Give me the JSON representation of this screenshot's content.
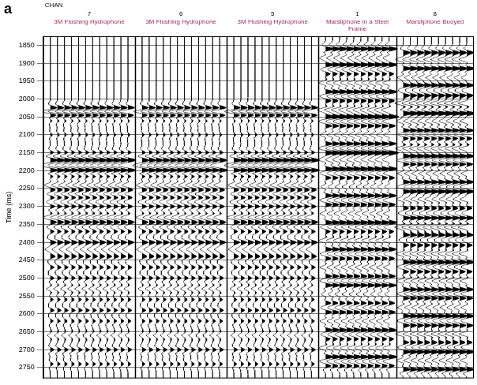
{
  "chart_data": {
    "type": "line",
    "panel_label": "a",
    "header": "CHAN",
    "y_label": "Time (ms)",
    "ylim": [
      1825,
      2780
    ],
    "yticks": [
      1850,
      1900,
      1950,
      2000,
      2050,
      2100,
      2150,
      2200,
      2250,
      2300,
      2350,
      2400,
      2450,
      2500,
      2550,
      2600,
      2650,
      2700,
      2750
    ],
    "grid": true,
    "tick_labels": "y",
    "color": "#000000",
    "panels": [
      {
        "channel": 7,
        "title": "3M Flushing Hydrophone",
        "traces": 12,
        "events": [
          [
            2025,
            0.5
          ],
          [
            2035,
            -0.6
          ],
          [
            2045,
            0.5
          ],
          [
            2060,
            0.3
          ],
          [
            2100,
            0.2
          ],
          [
            2150,
            0.4
          ],
          [
            2170,
            0.7
          ],
          [
            2185,
            -0.6
          ],
          [
            2200,
            0.8
          ],
          [
            2215,
            0.5
          ],
          [
            2240,
            -0.5
          ],
          [
            2255,
            0.4
          ],
          [
            2275,
            0.5
          ],
          [
            2300,
            0.5
          ],
          [
            2330,
            -0.6
          ],
          [
            2345,
            0.5
          ],
          [
            2370,
            0.4
          ],
          [
            2400,
            0.6
          ],
          [
            2420,
            -0.5
          ],
          [
            2440,
            0.5
          ],
          [
            2470,
            0.4
          ],
          [
            2500,
            0.4
          ],
          [
            2530,
            -0.4
          ],
          [
            2560,
            0.3
          ],
          [
            2590,
            0.4
          ],
          [
            2620,
            0.3
          ],
          [
            2660,
            -0.3
          ],
          [
            2700,
            0.4
          ],
          [
            2740,
            0.3
          ]
        ]
      },
      {
        "channel": 6,
        "title": "3M Flushing Hydrophone",
        "traces": 12,
        "events": [
          [
            2025,
            0.5
          ],
          [
            2035,
            -0.5
          ],
          [
            2045,
            0.5
          ],
          [
            2060,
            0.3
          ],
          [
            2100,
            0.2
          ],
          [
            2150,
            0.4
          ],
          [
            2170,
            0.6
          ],
          [
            2185,
            -0.6
          ],
          [
            2200,
            0.8
          ],
          [
            2215,
            0.5
          ],
          [
            2240,
            -0.5
          ],
          [
            2255,
            0.4
          ],
          [
            2275,
            0.5
          ],
          [
            2300,
            0.5
          ],
          [
            2330,
            -0.5
          ],
          [
            2345,
            0.5
          ],
          [
            2370,
            0.4
          ],
          [
            2400,
            0.6
          ],
          [
            2420,
            -0.5
          ],
          [
            2440,
            0.5
          ],
          [
            2470,
            0.4
          ],
          [
            2500,
            0.4
          ],
          [
            2530,
            -0.4
          ],
          [
            2560,
            0.3
          ],
          [
            2590,
            0.4
          ],
          [
            2620,
            0.3
          ],
          [
            2660,
            -0.3
          ],
          [
            2700,
            0.4
          ],
          [
            2740,
            0.3
          ]
        ]
      },
      {
        "channel": 5,
        "title": "3M Flushing Hydrophone",
        "traces": 12,
        "events": [
          [
            2025,
            0.5
          ],
          [
            2035,
            -0.6
          ],
          [
            2045,
            0.5
          ],
          [
            2060,
            0.3
          ],
          [
            2100,
            0.2
          ],
          [
            2150,
            0.4
          ],
          [
            2170,
            0.7
          ],
          [
            2185,
            -0.6
          ],
          [
            2200,
            0.8
          ],
          [
            2215,
            0.5
          ],
          [
            2240,
            -0.5
          ],
          [
            2255,
            0.4
          ],
          [
            2275,
            0.5
          ],
          [
            2300,
            0.5
          ],
          [
            2330,
            -0.6
          ],
          [
            2345,
            0.5
          ],
          [
            2370,
            0.4
          ],
          [
            2400,
            0.6
          ],
          [
            2420,
            -0.5
          ],
          [
            2440,
            0.5
          ],
          [
            2470,
            0.4
          ],
          [
            2500,
            0.4
          ],
          [
            2530,
            -0.4
          ],
          [
            2560,
            0.3
          ],
          [
            2590,
            0.4
          ],
          [
            2620,
            0.3
          ],
          [
            2660,
            -0.3
          ],
          [
            2700,
            0.4
          ],
          [
            2740,
            0.3
          ]
        ]
      },
      {
        "channel": 1,
        "title": "Marsliphone in a Steel Frame",
        "traces": 10,
        "events": [
          [
            1860,
            0.9
          ],
          [
            1885,
            -0.6
          ],
          [
            1905,
            0.8
          ],
          [
            1930,
            0.5
          ],
          [
            1955,
            -0.7
          ],
          [
            1980,
            0.9
          ],
          [
            2005,
            0.6
          ],
          [
            2030,
            -0.8
          ],
          [
            2050,
            1.0
          ],
          [
            2075,
            0.7
          ],
          [
            2100,
            -0.6
          ],
          [
            2125,
            0.8
          ],
          [
            2150,
            1.0
          ],
          [
            2170,
            -0.7
          ],
          [
            2195,
            0.9
          ],
          [
            2220,
            0.6
          ],
          [
            2245,
            -0.5
          ],
          [
            2270,
            0.8
          ],
          [
            2295,
            0.7
          ],
          [
            2320,
            -0.6
          ],
          [
            2345,
            0.9
          ],
          [
            2370,
            0.5
          ],
          [
            2395,
            -0.7
          ],
          [
            2420,
            0.8
          ],
          [
            2445,
            0.6
          ],
          [
            2470,
            -0.6
          ],
          [
            2495,
            0.7
          ],
          [
            2520,
            0.8
          ],
          [
            2545,
            -0.5
          ],
          [
            2570,
            0.6
          ],
          [
            2595,
            0.7
          ],
          [
            2620,
            -0.6
          ],
          [
            2645,
            0.8
          ],
          [
            2670,
            0.5
          ],
          [
            2695,
            -0.7
          ],
          [
            2720,
            0.9
          ],
          [
            2745,
            0.6
          ]
        ]
      },
      {
        "channel": 8,
        "title": "Marsliphone Buoyed",
        "traces": 10,
        "events": [
          [
            1870,
            0.7
          ],
          [
            1890,
            -0.8
          ],
          [
            1915,
            0.9
          ],
          [
            1940,
            -0.6
          ],
          [
            1962,
            0.8
          ],
          [
            1990,
            0.7
          ],
          [
            2012,
            -0.9
          ],
          [
            2040,
            1.0
          ],
          [
            2062,
            -0.7
          ],
          [
            2088,
            0.8
          ],
          [
            2110,
            0.6
          ],
          [
            2138,
            -0.8
          ],
          [
            2160,
            0.9
          ],
          [
            2182,
            0.7
          ],
          [
            2208,
            -0.6
          ],
          [
            2232,
            0.8
          ],
          [
            2258,
            0.9
          ],
          [
            2280,
            -0.7
          ],
          [
            2305,
            0.6
          ],
          [
            2332,
            0.8
          ],
          [
            2358,
            -0.9
          ],
          [
            2380,
            0.7
          ],
          [
            2408,
            0.6
          ],
          [
            2432,
            -0.8
          ],
          [
            2456,
            0.9
          ],
          [
            2482,
            0.6
          ],
          [
            2508,
            -0.7
          ],
          [
            2532,
            0.8
          ],
          [
            2556,
            0.7
          ],
          [
            2582,
            -0.6
          ],
          [
            2606,
            0.9
          ],
          [
            2632,
            0.7
          ],
          [
            2656,
            -0.8
          ],
          [
            2680,
            0.6
          ],
          [
            2706,
            0.9
          ],
          [
            2730,
            -0.7
          ],
          [
            2755,
            0.8
          ]
        ]
      }
    ]
  }
}
